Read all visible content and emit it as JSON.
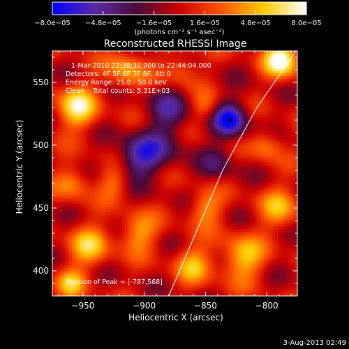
{
  "chart_data": {
    "type": "heatmap",
    "title": "Reconstructed RHESSI Image",
    "xlabel": "Heliocentric X (arcsec)",
    "ylabel": "Heliocentric Y (arcsec)",
    "xlim": [
      -975,
      -775
    ],
    "ylim": [
      380,
      575
    ],
    "x_ticks": [
      -950,
      -900,
      -850,
      -800
    ],
    "x_tick_labels": [
      "−950",
      "−900",
      "−850",
      "−800"
    ],
    "y_ticks": [
      400,
      450,
      500,
      550
    ],
    "y_tick_labels": [
      "400",
      "450",
      "500",
      "550"
    ],
    "colorbar": {
      "min": -8e-05,
      "max": 8e-05,
      "ticks": [
        -8e-05,
        -4.8e-05,
        -1.6e-05,
        1.6e-05,
        4.8e-05,
        8e-05
      ],
      "tick_labels": [
        "−8.0e−05",
        "−4.8e−05",
        "−1.6e−05",
        "1.6e−05",
        "4.8e−05",
        "8.0e−05"
      ],
      "unit_label": "(photons cm⁻² s⁻¹ asec⁻²)",
      "colors": [
        "#0000ff",
        "#5a2aa6",
        "#4a0a3a",
        "#cc0000",
        "#ff5500",
        "#ffcc00",
        "#ffffff"
      ]
    },
    "info_lines": [
      "1-Mar-2010 22:38:30.000 to 22:44:04.000",
      "Detectors: 4F 5F 6F 7F 8F, Att 0",
      "Energy Range: 25.0 - 50.0 keV",
      "Clean    Total counts: 5.31E+03"
    ],
    "peak_text": "Position of Peak = [-787,568]",
    "peak": [
      -787,
      568
    ],
    "limb_curve": [
      [
        -880,
        380
      ],
      [
        -858,
        430
      ],
      [
        -836,
        480
      ],
      [
        -808,
        530
      ],
      [
        -776,
        575
      ]
    ],
    "sources": [
      {
        "x": -788,
        "y": 568,
        "amp": 1.0,
        "r": 10
      },
      {
        "x": -955,
        "y": 530,
        "amp": 0.8,
        "r": 12
      },
      {
        "x": -958,
        "y": 470,
        "amp": 0.45,
        "r": 10
      },
      {
        "x": -915,
        "y": 560,
        "amp": 0.55,
        "r": 11
      },
      {
        "x": -870,
        "y": 560,
        "amp": 0.4,
        "r": 10
      },
      {
        "x": -850,
        "y": 530,
        "amp": 0.35,
        "r": 8
      },
      {
        "x": -800,
        "y": 500,
        "amp": 0.45,
        "r": 9
      },
      {
        "x": -790,
        "y": 450,
        "amp": 0.5,
        "r": 12
      },
      {
        "x": -820,
        "y": 410,
        "amp": 0.65,
        "r": 13
      },
      {
        "x": -860,
        "y": 405,
        "amp": 0.55,
        "r": 11
      },
      {
        "x": -905,
        "y": 430,
        "amp": 0.55,
        "r": 11
      },
      {
        "x": -945,
        "y": 420,
        "amp": 0.6,
        "r": 12
      },
      {
        "x": -960,
        "y": 390,
        "amp": 0.55,
        "r": 9
      },
      {
        "x": -925,
        "y": 470,
        "amp": 0.4,
        "r": 9
      },
      {
        "x": -850,
        "y": 450,
        "amp": 0.5,
        "r": 10
      },
      {
        "x": -885,
        "y": 500,
        "amp": -0.35,
        "r": 14
      },
      {
        "x": -905,
        "y": 490,
        "amp": -0.65,
        "r": 12
      },
      {
        "x": -880,
        "y": 530,
        "amp": -0.45,
        "r": 12
      },
      {
        "x": -830,
        "y": 520,
        "amp": -0.9,
        "r": 10
      },
      {
        "x": -840,
        "y": 485,
        "amp": -0.35,
        "r": 10
      }
    ]
  },
  "footer": {
    "timestamp": "3-Aug-2013 02:49"
  }
}
